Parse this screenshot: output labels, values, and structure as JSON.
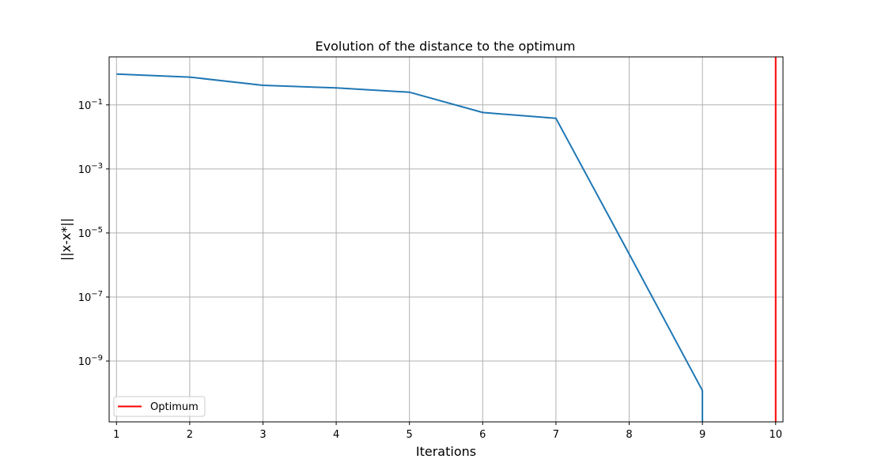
{
  "chart_data": {
    "type": "line",
    "title": "Evolution of the distance to the optimum",
    "xlabel": "Iterations",
    "ylabel": "||x-x*||",
    "yscale": "log",
    "grid": true,
    "xlim": [
      0.9,
      10.1
    ],
    "ylim_log10": [
      -10.9,
      0.5
    ],
    "x_ticks": [
      1,
      2,
      3,
      4,
      5,
      6,
      7,
      8,
      9,
      10
    ],
    "y_ticks": [
      {
        "exp": -1,
        "label": "10",
        "sup": "−1"
      },
      {
        "exp": -3,
        "label": "10",
        "sup": "−3"
      },
      {
        "exp": -5,
        "label": "10",
        "sup": "−5"
      },
      {
        "exp": -7,
        "label": "10",
        "sup": "−7"
      },
      {
        "exp": -9,
        "label": "10",
        "sup": "−9"
      }
    ],
    "series": [
      {
        "color": "#1f77b4",
        "x": [
          1,
          2,
          3,
          4,
          5,
          6,
          7,
          8,
          9,
          9
        ],
        "y": [
          0.92,
          0.74,
          0.41,
          0.34,
          0.25,
          0.058,
          0.038,
          2.2e-06,
          1.2e-10,
          1e-11
        ]
      }
    ],
    "vlines": [
      {
        "name": "Optimum",
        "x": 10,
        "color": "#ff0000"
      }
    ],
    "legend": {
      "placement": "lower-left",
      "entries": [
        "Optimum"
      ]
    }
  }
}
